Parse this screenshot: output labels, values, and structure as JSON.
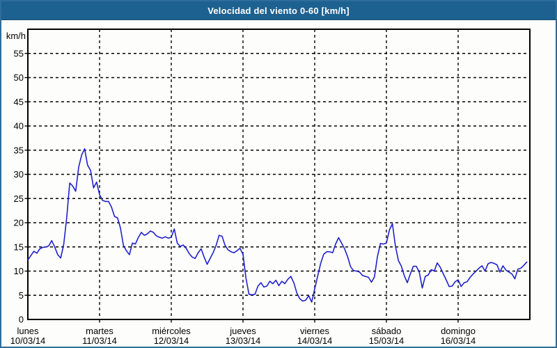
{
  "window": {
    "title": "Velocidad del viento 0-60 [km/h]"
  },
  "colors": {
    "title_bar": "#1d6190",
    "title_bar_edge": "#164a6e",
    "title_text": "#ffffff",
    "outer_border": "#2d6d9c",
    "background": "#fdfefb",
    "plot_frame": "#000000",
    "grid": "#000000",
    "text": "#000000",
    "line": "#2020cc"
  },
  "chart_data": {
    "type": "line",
    "title": "Velocidad del viento 0-60 [km/h]",
    "ylabel": "km/h",
    "xlabel": "",
    "ylim": [
      0,
      60
    ],
    "ytick_interval": 5,
    "ytick_labels": [
      "0",
      "5",
      "10",
      "15",
      "20",
      "25",
      "30",
      "35",
      "40",
      "45",
      "50",
      "55"
    ],
    "grid": "dashed",
    "legend": "none",
    "sampling": "hourly",
    "x_days": [
      {
        "name": "lunes",
        "date": "10/03/14"
      },
      {
        "name": "martes",
        "date": "11/03/14"
      },
      {
        "name": "miércoles",
        "date": "12/03/14"
      },
      {
        "name": "jueves",
        "date": "13/03/14"
      },
      {
        "name": "viernes",
        "date": "14/03/14"
      },
      {
        "name": "sábado",
        "date": "15/03/14"
      },
      {
        "name": "domingo",
        "date": "16/03/14"
      }
    ],
    "series": [
      {
        "name": "Velocidad del viento",
        "unit": "km/h",
        "values": [
          12.3,
          13.2,
          14.1,
          13.7,
          14.6,
          14.9,
          15.0,
          15.2,
          16.3,
          15.0,
          13.4,
          12.7,
          15.5,
          21.0,
          28.2,
          27.6,
          26.5,
          31.5,
          34.0,
          35.3,
          31.9,
          30.8,
          27.2,
          28.4,
          25.8,
          24.6,
          24.4,
          24.4,
          23.2,
          21.3,
          21.0,
          18.9,
          15.3,
          14.2,
          13.4,
          15.8,
          15.6,
          17.0,
          18.0,
          17.4,
          17.7,
          18.3,
          18.0,
          17.3,
          17.0,
          16.8,
          17.1,
          16.8,
          17.0,
          18.7,
          15.8,
          15.1,
          15.4,
          14.7,
          13.6,
          12.9,
          12.6,
          13.8,
          14.6,
          12.9,
          11.4,
          12.6,
          13.8,
          15.3,
          17.4,
          17.2,
          15.3,
          14.4,
          14.0,
          13.8,
          14.2,
          14.7,
          13.5,
          8.5,
          5.2,
          5.1,
          5.2,
          6.9,
          7.6,
          6.7,
          6.9,
          7.9,
          7.4,
          8.1,
          7.0,
          7.9,
          7.4,
          8.3,
          8.9,
          7.6,
          5.5,
          4.3,
          3.8,
          4.0,
          4.9,
          3.6,
          6.3,
          9.0,
          11.6,
          13.5,
          14.0,
          14.0,
          13.8,
          15.6,
          16.9,
          15.8,
          14.6,
          13.0,
          10.9,
          10.1,
          10.0,
          9.8,
          9.1,
          8.9,
          8.7,
          7.7,
          8.8,
          13.0,
          15.7,
          15.6,
          15.8,
          18.5,
          19.8,
          15.2,
          12.2,
          11.0,
          9.0,
          7.6,
          9.4,
          11.0,
          11.0,
          9.8,
          6.5,
          8.9,
          9.2,
          10.3,
          10.0,
          11.7,
          10.8,
          9.5,
          8.2,
          6.8,
          6.9,
          7.8,
          8.2,
          6.8,
          7.6,
          7.8,
          8.7,
          9.4,
          10.0,
          10.6,
          11.1,
          10.0,
          11.5,
          11.8,
          11.6,
          11.3,
          9.8,
          11.1,
          10.2,
          9.8,
          9.4,
          8.4,
          10.4,
          10.6,
          11.2,
          11.9
        ]
      }
    ]
  }
}
